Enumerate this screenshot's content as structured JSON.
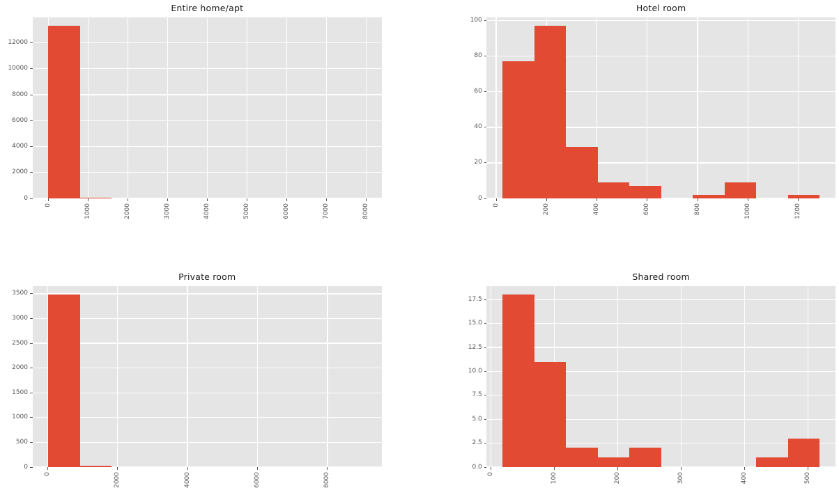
{
  "figure": {
    "background_color": "#ffffff",
    "plot_background_color": "#e5e5e5",
    "grid_color": "#ffffff",
    "bar_color": "#e24a33",
    "tick_label_color": "#555555",
    "title_color": "#1d1d1d"
  },
  "chart_data": [
    {
      "type": "histogram",
      "title": "Entire home/apt",
      "xlabel": "",
      "ylabel": "",
      "grid": true,
      "bin_start": 0,
      "bin_width": 800,
      "counts": [
        13300,
        75,
        0,
        0,
        0,
        0,
        0,
        0,
        0,
        0
      ],
      "xlim": [
        -400,
        8400
      ],
      "ylim": [
        0,
        13965
      ],
      "x_ticks": [
        0,
        1000,
        2000,
        3000,
        4000,
        5000,
        6000,
        7000,
        8000
      ],
      "y_ticks": [
        0,
        2000,
        4000,
        6000,
        8000,
        10000,
        12000
      ],
      "x_tick_rotation": 90,
      "y_tick_decimals": 0
    },
    {
      "type": "histogram",
      "title": "Hotel room",
      "xlabel": "",
      "ylabel": "",
      "grid": true,
      "bin_start": 25,
      "bin_width": 126,
      "counts": [
        77,
        97,
        29,
        9,
        7,
        0,
        2,
        9,
        0,
        2
      ],
      "xlim": [
        -38,
        1348
      ],
      "ylim": [
        0,
        101.85
      ],
      "x_ticks": [
        0,
        200,
        400,
        600,
        800,
        1000,
        1200
      ],
      "y_ticks": [
        0,
        20,
        40,
        60,
        80,
        100
      ],
      "x_tick_rotation": 90,
      "y_tick_decimals": 0
    },
    {
      "type": "histogram",
      "title": "Private room",
      "xlabel": "",
      "ylabel": "",
      "grid": true,
      "bin_start": 20,
      "bin_width": 908,
      "counts": [
        3480,
        25,
        0,
        0,
        0,
        0,
        0,
        0,
        0,
        0
      ],
      "xlim": [
        -434,
        9554
      ],
      "ylim": [
        0,
        3654
      ],
      "x_ticks": [
        0,
        2000,
        4000,
        6000,
        8000
      ],
      "y_ticks": [
        0,
        500,
        1000,
        1500,
        2000,
        2500,
        3000,
        3500
      ],
      "x_tick_rotation": 90,
      "y_tick_decimals": 0
    },
    {
      "type": "histogram",
      "title": "Shared room",
      "xlabel": "",
      "ylabel": "",
      "grid": true,
      "bin_start": 18,
      "bin_width": 50,
      "counts": [
        18,
        11,
        2,
        1,
        2,
        0,
        0,
        0,
        1,
        3
      ],
      "xlim": [
        -7,
        543
      ],
      "ylim": [
        0,
        18.9
      ],
      "x_ticks": [
        0,
        100,
        200,
        300,
        400,
        500
      ],
      "y_ticks": [
        0,
        2.5,
        5,
        7.5,
        10,
        12.5,
        15,
        17.5
      ],
      "x_tick_rotation": 90,
      "y_tick_decimals": 1
    }
  ]
}
